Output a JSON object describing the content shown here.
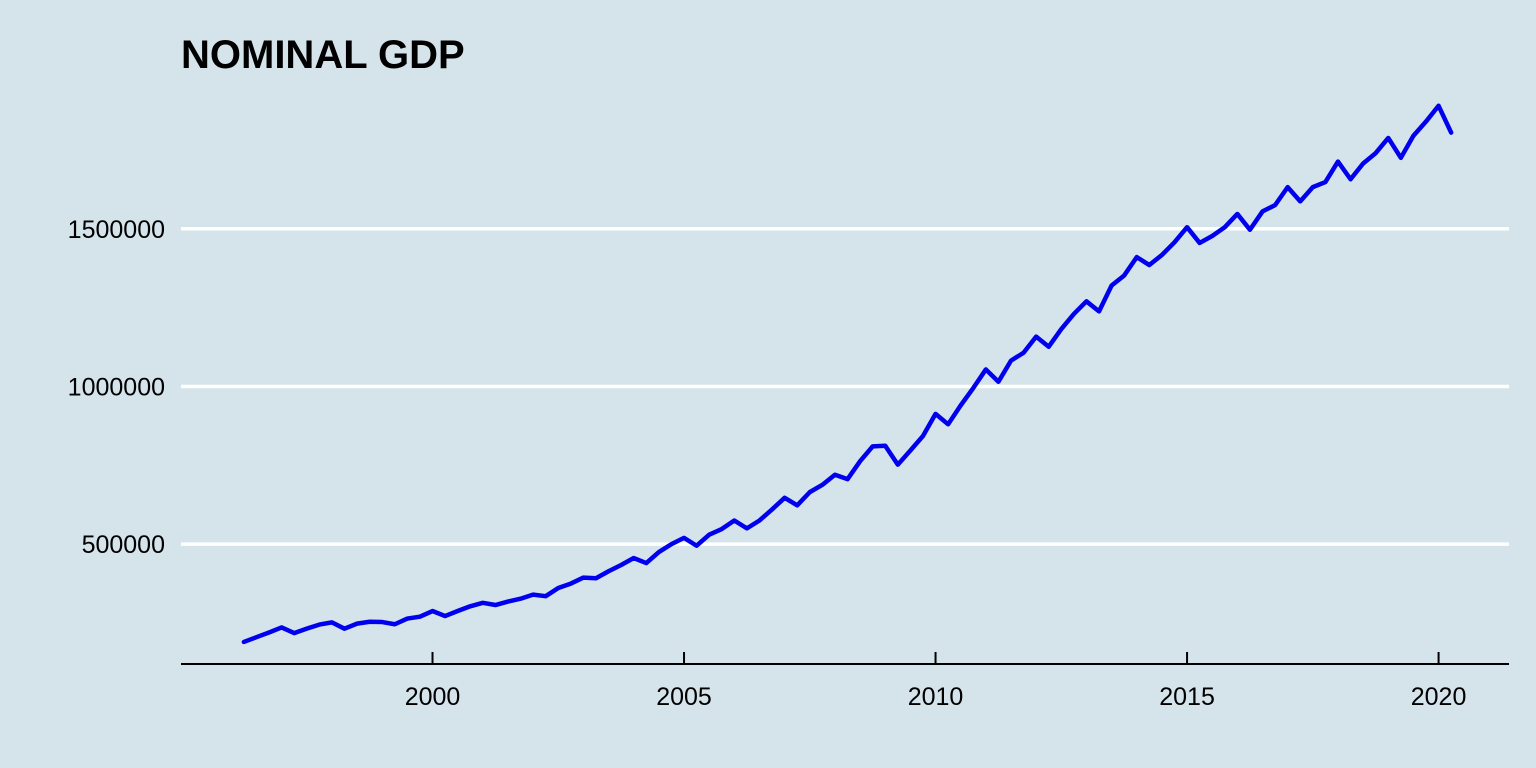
{
  "chart_data": {
    "type": "line",
    "title": "NOMINAL GDP",
    "xlabel": "",
    "ylabel": "",
    "xlim": [
      1995.0,
      2021.4
    ],
    "ylim": [
      120000,
      1940000
    ],
    "x_ticks": [
      2000,
      2005,
      2010,
      2015,
      2020
    ],
    "y_ticks": [
      500000,
      1000000,
      1500000
    ],
    "y_tick_labels": [
      "500000",
      "1000000",
      "1500000"
    ],
    "grid": "horizontal",
    "legend": "none",
    "colors": {
      "background": "#d5e4eb",
      "line": "#0000ee",
      "grid": "#ffffff",
      "axis": "#000000"
    },
    "series": [
      {
        "x": [
          1996.25,
          1996.5,
          1996.75,
          1997.0,
          1997.25,
          1997.5,
          1997.75,
          1998.0,
          1998.25,
          1998.5,
          1998.75,
          1999.0,
          1999.25,
          1999.5,
          1999.75,
          2000.0,
          2000.25,
          2000.5,
          2000.75,
          2001.0,
          2001.25,
          2001.5,
          2001.75,
          2002.0,
          2002.25,
          2002.5,
          2002.75,
          2003.0,
          2003.25,
          2003.5,
          2003.75,
          2004.0,
          2004.25,
          2004.5,
          2004.75,
          2005.0,
          2005.25,
          2005.5,
          2005.75,
          2006.0,
          2006.25,
          2006.5,
          2006.75,
          2007.0,
          2007.25,
          2007.5,
          2007.75,
          2008.0,
          2008.25,
          2008.5,
          2008.75,
          2009.0,
          2009.25,
          2009.5,
          2009.75,
          2010.0,
          2010.25,
          2010.5,
          2010.75,
          2011.0,
          2011.25,
          2011.5,
          2011.75,
          2012.0,
          2012.25,
          2012.5,
          2012.75,
          2013.0,
          2013.25,
          2013.5,
          2013.75,
          2014.0,
          2014.25,
          2014.5,
          2014.75,
          2015.0,
          2015.25,
          2015.5,
          2015.75,
          2016.0,
          2016.25,
          2016.5,
          2016.75,
          2017.0,
          2017.25,
          2017.5,
          2017.75,
          2018.0,
          2018.25,
          2018.5,
          2018.75,
          2019.0,
          2019.25,
          2019.5,
          2019.75,
          2020.0,
          2020.25
        ],
        "values": [
          190000,
          205000,
          220000,
          236000,
          218000,
          232000,
          245000,
          252000,
          232000,
          248000,
          254000,
          253000,
          246000,
          264000,
          270000,
          288000,
          272000,
          288000,
          303000,
          314000,
          307000,
          318000,
          327000,
          340000,
          335000,
          361000,
          375000,
          394000,
          392000,
          414000,
          434000,
          456000,
          440000,
          475000,
          500000,
          520000,
          495000,
          530000,
          548000,
          575000,
          550000,
          575000,
          610000,
          647000,
          623000,
          665000,
          688000,
          720000,
          706000,
          763000,
          810000,
          812000,
          752000,
          797000,
          843000,
          913000,
          880000,
          940000,
          995000,
          1054000,
          1015000,
          1082000,
          1107000,
          1158000,
          1126000,
          1182000,
          1230000,
          1270000,
          1238000,
          1320000,
          1352000,
          1410000,
          1385000,
          1417000,
          1457000,
          1505000,
          1455000,
          1477000,
          1505000,
          1547000,
          1497000,
          1555000,
          1575000,
          1632000,
          1587000,
          1632000,
          1648000,
          1713000,
          1657000,
          1707000,
          1740000,
          1788000,
          1725000,
          1795000,
          1840000,
          1890000,
          1805000
        ]
      }
    ]
  }
}
